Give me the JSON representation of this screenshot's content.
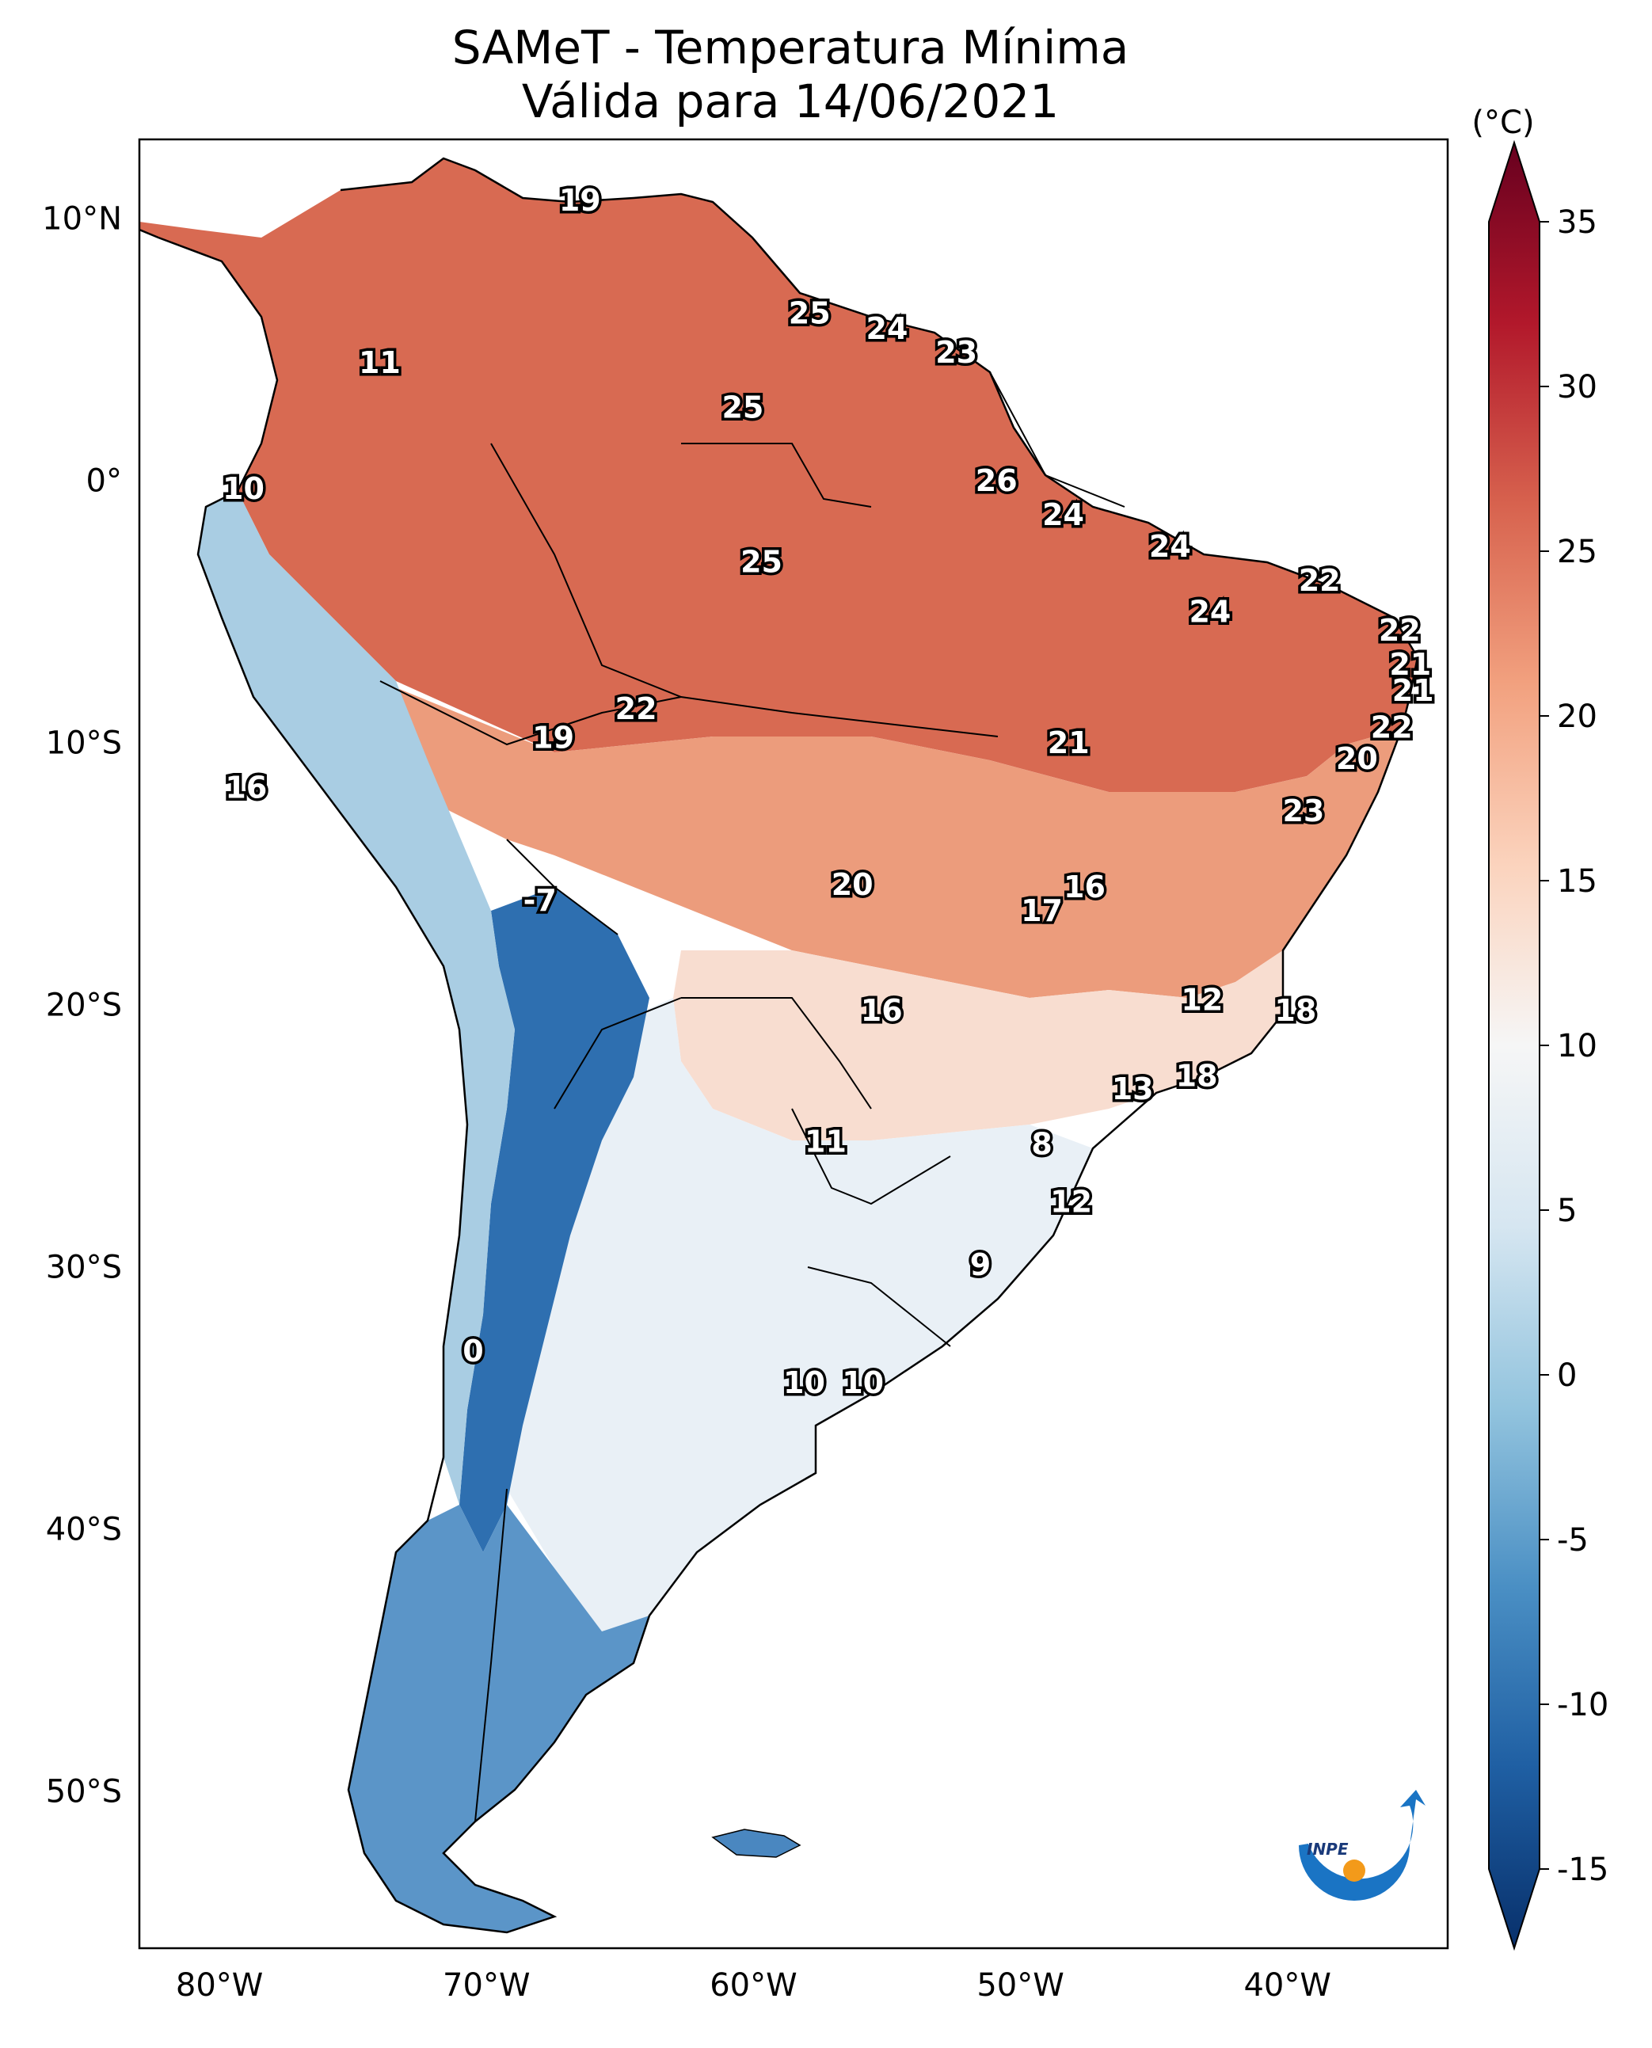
{
  "title_line1": "SAMeT - Temperatura Mínima",
  "title_line2": "Válida para 14/06/2021",
  "colorbar": {
    "unit_label": "(°C)",
    "min": -15,
    "max": 35,
    "extend": "both",
    "ticks": [
      "35",
      "30",
      "25",
      "20",
      "15",
      "10",
      "5",
      "0",
      "-5",
      "-10",
      "-15"
    ],
    "colors": [
      "#08306b",
      "#1f5fa3",
      "#4a8fc4",
      "#93c4de",
      "#d6e6f1",
      "#f6f6f6",
      "#fbd3bd",
      "#f2a17f",
      "#d7624e",
      "#b2182b",
      "#67001f"
    ]
  },
  "map": {
    "extent": {
      "lon_min": -83,
      "lon_max": -34,
      "lat_min": -56,
      "lat_max": 13
    },
    "lon_ticks": [
      "80°W",
      "70°W",
      "60°W",
      "50°W",
      "40°W"
    ],
    "lat_ticks": [
      "10°N",
      "0°",
      "10°S",
      "20°S",
      "30°S",
      "40°S",
      "50°S"
    ]
  },
  "labels": [
    {
      "lon": -66.5,
      "lat": 10.6,
      "text": "19"
    },
    {
      "lon": -57.9,
      "lat": 6.3,
      "text": "25"
    },
    {
      "lon": -55.0,
      "lat": 5.7,
      "text": "24"
    },
    {
      "lon": -52.4,
      "lat": 4.8,
      "text": "23"
    },
    {
      "lon": -74.0,
      "lat": 4.4,
      "text": "11"
    },
    {
      "lon": -60.4,
      "lat": 2.7,
      "text": "25"
    },
    {
      "lon": -50.9,
      "lat": -0.1,
      "text": "26"
    },
    {
      "lon": -79.1,
      "lat": -0.4,
      "text": "10"
    },
    {
      "lon": -48.4,
      "lat": -1.4,
      "text": "24"
    },
    {
      "lon": -44.4,
      "lat": -2.6,
      "text": "24"
    },
    {
      "lon": -59.7,
      "lat": -3.2,
      "text": "25"
    },
    {
      "lon": -38.8,
      "lat": -3.9,
      "text": "22"
    },
    {
      "lon": -42.9,
      "lat": -5.1,
      "text": "24"
    },
    {
      "lon": -35.8,
      "lat": -5.8,
      "text": "22"
    },
    {
      "lon": -35.4,
      "lat": -7.1,
      "text": "21"
    },
    {
      "lon": -35.3,
      "lat": -8.1,
      "text": "21"
    },
    {
      "lon": -64.4,
      "lat": -8.8,
      "text": "22"
    },
    {
      "lon": -36.1,
      "lat": -9.5,
      "text": "22"
    },
    {
      "lon": -67.5,
      "lat": -9.9,
      "text": "19"
    },
    {
      "lon": -48.2,
      "lat": -10.1,
      "text": "21"
    },
    {
      "lon": -37.4,
      "lat": -10.7,
      "text": "20"
    },
    {
      "lon": -79.0,
      "lat": -11.8,
      "text": "16"
    },
    {
      "lon": -39.4,
      "lat": -12.7,
      "text": "23"
    },
    {
      "lon": -56.3,
      "lat": -15.5,
      "text": "20"
    },
    {
      "lon": -47.6,
      "lat": -15.6,
      "text": "16"
    },
    {
      "lon": -49.2,
      "lat": -16.5,
      "text": "17"
    },
    {
      "lon": -68.0,
      "lat": -16.1,
      "text": "-7"
    },
    {
      "lon": -43.2,
      "lat": -19.9,
      "text": "12"
    },
    {
      "lon": -55.2,
      "lat": -20.3,
      "text": "16"
    },
    {
      "lon": -39.7,
      "lat": -20.3,
      "text": "18"
    },
    {
      "lon": -43.4,
      "lat": -22.8,
      "text": "18"
    },
    {
      "lon": -45.8,
      "lat": -23.3,
      "text": "13"
    },
    {
      "lon": -57.3,
      "lat": -25.3,
      "text": "11"
    },
    {
      "lon": -49.2,
      "lat": -25.4,
      "text": "8"
    },
    {
      "lon": -48.1,
      "lat": -27.6,
      "text": "12"
    },
    {
      "lon": -51.5,
      "lat": -30.0,
      "text": "9"
    },
    {
      "lon": -70.5,
      "lat": -33.3,
      "text": "0"
    },
    {
      "lon": -58.1,
      "lat": -34.5,
      "text": "10"
    },
    {
      "lon": -55.9,
      "lat": -34.5,
      "text": "10"
    }
  ],
  "logo": {
    "text": "INPE"
  }
}
